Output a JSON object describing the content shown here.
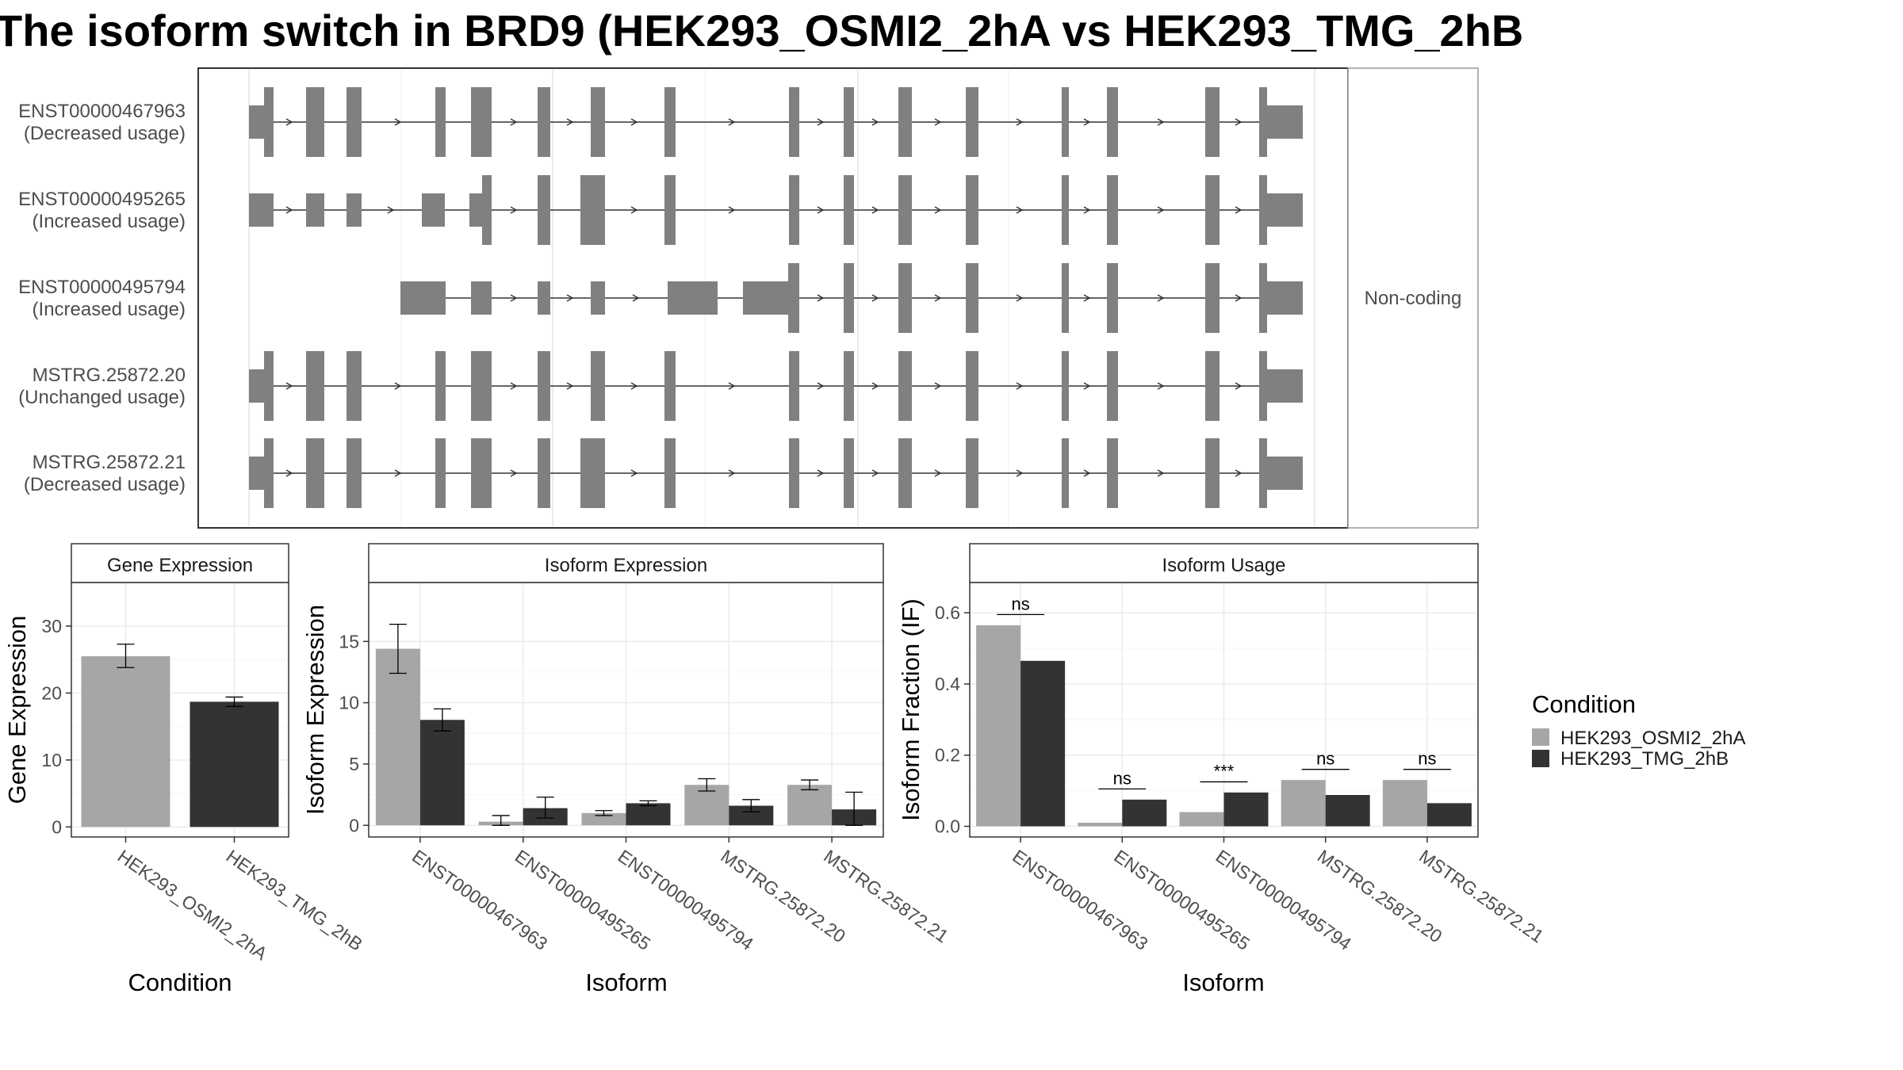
{
  "title": "The isoform switch in BRD9 (HEK293_OSMI2_2hA vs HEK293_TMG_2hB",
  "colors": {
    "osmi": "#a6a6a6",
    "tmg": "#333333",
    "exon": "#808080",
    "grid": "#ebebeb",
    "frame": "#333333"
  },
  "structure": {
    "coding_note": "Non-coding",
    "transcripts": [
      {
        "id": "ENST00000467963",
        "usage": "(Decreased usage)"
      },
      {
        "id": "ENST00000495265",
        "usage": "(Increased usage)"
      },
      {
        "id": "ENST00000495794",
        "usage": "(Increased usage)"
      },
      {
        "id": "MSTRG.25872.20",
        "usage": "(Unchanged usage)"
      },
      {
        "id": "MSTRG.25872.21",
        "usage": "(Decreased usage)"
      }
    ]
  },
  "legend": {
    "title": "Condition",
    "items": [
      "HEK293_OSMI2_2hA",
      "HEK293_TMG_2hB"
    ]
  },
  "chart_data": [
    {
      "type": "bar",
      "title": "Gene Expression",
      "xlabel": "Condition",
      "ylabel": "Gene Expression",
      "categories": [
        "HEK293_OSMI2_2hA",
        "HEK293_TMG_2hB"
      ],
      "values": [
        25.5,
        18.7
      ],
      "error_low": [
        23.8,
        18.0
      ],
      "error_high": [
        27.3,
        19.4
      ],
      "yticks": [
        0,
        10,
        20,
        30
      ],
      "ylim": [
        -1.5,
        36.5
      ]
    },
    {
      "type": "bar",
      "title": "Isoform Expression",
      "xlabel": "Isoform",
      "ylabel": "Isoform Expression",
      "categories": [
        "ENST00000467963",
        "ENST00000495265",
        "ENST00000495794",
        "MSTRG.25872.20",
        "MSTRG.25872.21"
      ],
      "series": [
        {
          "name": "HEK293_OSMI2_2hA",
          "values": [
            14.4,
            0.3,
            1.0,
            3.3,
            3.3
          ],
          "error_low": [
            12.4,
            0.0,
            0.8,
            2.8,
            2.9
          ],
          "error_high": [
            16.4,
            0.8,
            1.2,
            3.8,
            3.7
          ]
        },
        {
          "name": "HEK293_TMG_2hB",
          "values": [
            8.6,
            1.4,
            1.8,
            1.6,
            1.3
          ],
          "error_low": [
            7.7,
            0.6,
            1.6,
            1.1,
            0.0
          ],
          "error_high": [
            9.5,
            2.3,
            2.0,
            2.1,
            2.7
          ]
        }
      ],
      "yticks": [
        0,
        5,
        10,
        15
      ],
      "ylim": [
        -0.95,
        19.8
      ]
    },
    {
      "type": "bar",
      "title": "Isoform Usage",
      "xlabel": "Isoform",
      "ylabel": "Isoform Fraction (IF)",
      "categories": [
        "ENST00000467963",
        "ENST00000495265",
        "ENST00000495794",
        "MSTRG.25872.20",
        "MSTRG.25872.21"
      ],
      "series": [
        {
          "name": "HEK293_OSMI2_2hA",
          "values": [
            0.565,
            0.01,
            0.04,
            0.13,
            0.13
          ]
        },
        {
          "name": "HEK293_TMG_2hB",
          "values": [
            0.465,
            0.075,
            0.095,
            0.088,
            0.065
          ]
        }
      ],
      "significance": [
        "ns",
        "ns",
        "***",
        "ns",
        "ns"
      ],
      "significance_y": [
        0.595,
        0.105,
        0.125,
        0.16,
        0.16
      ],
      "yticks": [
        0.0,
        0.2,
        0.4,
        0.6
      ],
      "ytick_labels": [
        "0.0",
        "0.2",
        "0.4",
        "0.6"
      ],
      "ylim": [
        -0.03,
        0.685
      ]
    }
  ]
}
